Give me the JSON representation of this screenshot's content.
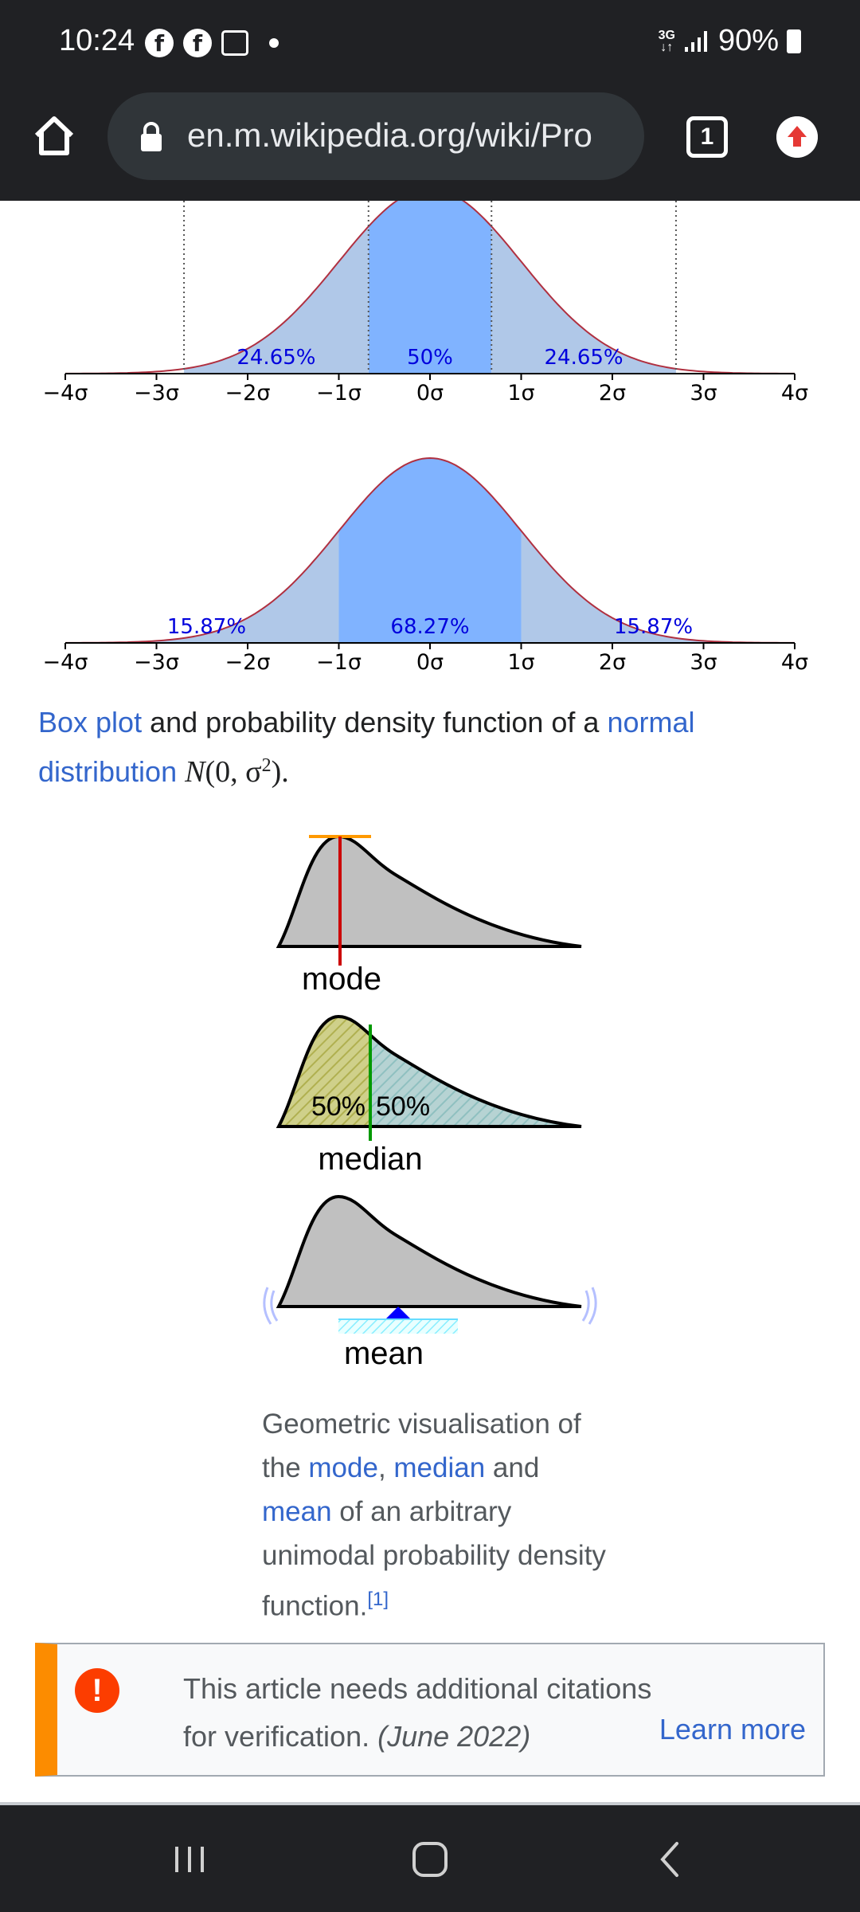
{
  "status_bar": {
    "time": "10:24",
    "network": "3G",
    "battery": "90%"
  },
  "browser": {
    "url": "en.m.wikipedia.org/wiki/Pro",
    "tab_count": "1"
  },
  "chart_data": [
    {
      "type": "area",
      "x_tick_labels": [
        "−4σ",
        "−3σ",
        "−2σ",
        "−1σ",
        "0σ",
        "1σ",
        "2σ",
        "3σ",
        "4σ"
      ],
      "xlim": [
        -4,
        4
      ],
      "shaded_regions": [
        {
          "range": [
            -0.6745,
            0.6745
          ],
          "label": "50%",
          "color": "#80b3ff"
        },
        {
          "range": [
            -2.698,
            -0.6745
          ],
          "label": "24.65%",
          "color": "#b0c8e8"
        },
        {
          "range": [
            0.6745,
            2.698
          ],
          "label": "24.65%",
          "color": "#b0c8e8"
        }
      ],
      "dotted_lines_at": [
        -2.698,
        -0.6745,
        0.6745,
        2.698
      ]
    },
    {
      "type": "area",
      "x_tick_labels": [
        "−4σ",
        "−3σ",
        "−2σ",
        "−1σ",
        "0σ",
        "1σ",
        "2σ",
        "3σ",
        "4σ"
      ],
      "xlim": [
        -4,
        4
      ],
      "shaded_regions": [
        {
          "range": [
            -1,
            1
          ],
          "label": "68.27%",
          "color": "#80b3ff"
        },
        {
          "range": [
            -4,
            -1
          ],
          "label": "15.87%",
          "color": "#b0c8e8"
        },
        {
          "range": [
            1,
            4
          ],
          "label": "15.87%",
          "color": "#b0c8e8"
        }
      ]
    }
  ],
  "caption": {
    "link1": "Box plot",
    "text1": " and probability density function of a ",
    "link2": "normal distribution",
    "math_N": "N",
    "math_args": "(0, σ",
    "math_sup": "2",
    "math_end": ")."
  },
  "geometric": {
    "mode_label": "mode",
    "median_label": "median",
    "median_left": "50%",
    "median_right": "50%",
    "mean_label": "mean"
  },
  "geo_caption": {
    "t1": "Geometric visualisation of the ",
    "l1": "mode",
    "t2": ", ",
    "l2": "median",
    "t3": " and ",
    "l3": "mean",
    "t4": " of an arbitrary unimodal probability density function.",
    "ref": "[1]"
  },
  "notice": {
    "text": "This article needs additional citations for verification.",
    "date": "(June 2022)",
    "learn_more": "Learn more"
  }
}
